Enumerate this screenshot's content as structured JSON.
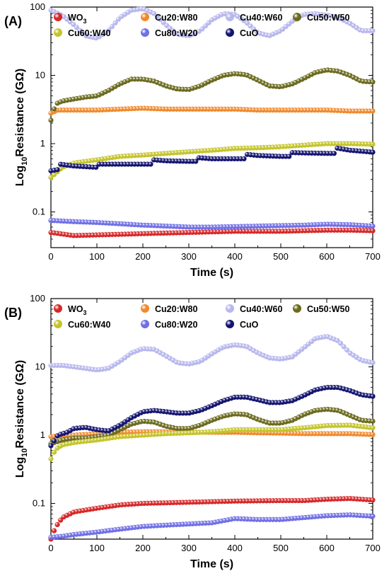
{
  "chart_data": [
    {
      "type": "scatter",
      "panel_label": "(A)",
      "xlabel": "Time (s)",
      "ylabel": "Log10Resistance (GΩ)",
      "ylabel_parts": {
        "pre": "Log",
        "sub": "10",
        "post": "Resistance (GΩ)"
      },
      "xlim": [
        0,
        700
      ],
      "ylim": [
        0.03,
        100
      ],
      "yscale": "log",
      "xticks": [
        0,
        100,
        200,
        300,
        400,
        500,
        600,
        700
      ],
      "yticks": [
        0.1,
        1,
        10,
        100
      ],
      "ytick_labels": [
        "0.1",
        "1",
        "10",
        "100"
      ],
      "legend_position": "top",
      "series": [
        {
          "name": "WO3",
          "name_parts": {
            "main": "WO",
            "sub": "3"
          },
          "color": "#d62728",
          "x": [
            0,
            50,
            100,
            150,
            200,
            250,
            300,
            350,
            400,
            450,
            500,
            550,
            600,
            650,
            700
          ],
          "y": [
            0.05,
            0.045,
            0.046,
            0.047,
            0.048,
            0.049,
            0.05,
            0.051,
            0.052,
            0.052,
            0.052,
            0.053,
            0.054,
            0.054,
            0.053
          ]
        },
        {
          "name": "Cu20:W80",
          "color": "#f0892c",
          "x": [
            0,
            15,
            50,
            100,
            150,
            200,
            250,
            300,
            350,
            400,
            450,
            500,
            550,
            600,
            650,
            700
          ],
          "y": [
            2.8,
            3.1,
            3.1,
            3.1,
            3.2,
            3.3,
            3.2,
            3.2,
            3.2,
            3.2,
            3.1,
            3.1,
            3.1,
            3.1,
            3.0,
            3.0
          ]
        },
        {
          "name": "Cu40:W60",
          "color": "#b8b8ee",
          "x": [
            0,
            25,
            50,
            75,
            100,
            125,
            150,
            175,
            200,
            225,
            250,
            275,
            300,
            325,
            350,
            375,
            400,
            425,
            450,
            475,
            500,
            525,
            550,
            575,
            600,
            625,
            650,
            675,
            700
          ],
          "y": [
            90,
            75,
            55,
            38,
            35,
            45,
            70,
            90,
            95,
            80,
            55,
            40,
            38,
            45,
            65,
            80,
            78,
            60,
            42,
            38,
            45,
            62,
            78,
            80,
            76,
            70,
            58,
            45,
            45
          ]
        },
        {
          "name": "Cu50:W50",
          "color": "#6b6a1e",
          "x": [
            0,
            10,
            25,
            50,
            75,
            100,
            125,
            150,
            175,
            200,
            225,
            250,
            275,
            300,
            325,
            350,
            375,
            400,
            425,
            450,
            475,
            500,
            525,
            550,
            575,
            600,
            625,
            650,
            675,
            700
          ],
          "y": [
            2.2,
            3.8,
            4.2,
            4.5,
            4.8,
            5.0,
            6.0,
            7.5,
            8.8,
            8.8,
            8.2,
            7.0,
            6.3,
            6.2,
            7.0,
            8.5,
            10.0,
            10.6,
            10.2,
            8.5,
            7.0,
            6.8,
            7.5,
            9.0,
            11.0,
            12.0,
            11.5,
            10.0,
            8.2,
            8.0
          ]
        },
        {
          "name": "Cu60:W40",
          "color": "#c4c42a",
          "x": [
            0,
            25,
            50,
            100,
            150,
            200,
            250,
            300,
            350,
            400,
            450,
            500,
            550,
            600,
            650,
            700
          ],
          "y": [
            0.32,
            0.45,
            0.52,
            0.58,
            0.65,
            0.68,
            0.72,
            0.76,
            0.8,
            0.85,
            0.87,
            0.9,
            0.95,
            1.0,
            1.0,
            0.98
          ]
        },
        {
          "name": "Cu80:W20",
          "color": "#6f6fe6",
          "x": [
            0,
            50,
            100,
            150,
            200,
            250,
            300,
            350,
            400,
            450,
            500,
            550,
            600,
            650,
            700
          ],
          "y": [
            0.075,
            0.072,
            0.07,
            0.067,
            0.064,
            0.062,
            0.06,
            0.06,
            0.061,
            0.062,
            0.063,
            0.064,
            0.066,
            0.065,
            0.062
          ]
        },
        {
          "name": "CuO",
          "color": "#141470",
          "x": [
            0,
            18,
            20,
            50,
            100,
            102,
            150,
            200,
            220,
            222,
            250,
            300,
            320,
            322,
            350,
            400,
            420,
            422,
            450,
            500,
            520,
            522,
            550,
            600,
            620,
            622,
            650,
            700
          ],
          "y": [
            0.4,
            0.42,
            0.5,
            0.47,
            0.45,
            0.5,
            0.5,
            0.5,
            0.5,
            0.58,
            0.56,
            0.55,
            0.55,
            0.62,
            0.6,
            0.6,
            0.6,
            0.7,
            0.67,
            0.65,
            0.65,
            0.74,
            0.73,
            0.72,
            0.72,
            0.86,
            0.8,
            0.75
          ]
        }
      ]
    },
    {
      "type": "scatter",
      "panel_label": "(B)",
      "xlabel": "Time (s)",
      "ylabel": "Log10Resistance (GΩ)",
      "ylabel_parts": {
        "pre": "Log",
        "sub": "10",
        "post": "Resistance (GΩ)"
      },
      "xlim": [
        0,
        700
      ],
      "ylim": [
        0.03,
        100
      ],
      "yscale": "log",
      "xticks": [
        0,
        100,
        200,
        300,
        400,
        500,
        600,
        700
      ],
      "yticks": [
        0.1,
        1,
        10,
        100
      ],
      "ytick_labels": [
        "0.1",
        "1",
        "10",
        "100"
      ],
      "legend_position": "top",
      "series": [
        {
          "name": "WO3",
          "name_parts": {
            "main": "WO",
            "sub": "3"
          },
          "color": "#d62728",
          "x": [
            0,
            10,
            25,
            50,
            100,
            150,
            200,
            250,
            300,
            350,
            400,
            450,
            500,
            550,
            600,
            650,
            700
          ],
          "y": [
            0.03,
            0.045,
            0.062,
            0.075,
            0.085,
            0.095,
            0.1,
            0.102,
            0.104,
            0.106,
            0.108,
            0.109,
            0.11,
            0.11,
            0.115,
            0.118,
            0.112
          ]
        },
        {
          "name": "Cu20:W80",
          "color": "#f0892c",
          "x": [
            0,
            25,
            50,
            100,
            150,
            200,
            250,
            300,
            350,
            400,
            450,
            500,
            550,
            600,
            650,
            700
          ],
          "y": [
            0.95,
            0.98,
            1.0,
            1.05,
            1.1,
            1.12,
            1.12,
            1.1,
            1.1,
            1.1,
            1.08,
            1.07,
            1.05,
            1.05,
            1.05,
            1.02
          ]
        },
        {
          "name": "Cu40:W60",
          "color": "#b8b8ee",
          "x": [
            0,
            25,
            50,
            75,
            100,
            125,
            150,
            175,
            200,
            225,
            250,
            275,
            300,
            325,
            350,
            375,
            400,
            425,
            450,
            475,
            500,
            525,
            550,
            575,
            600,
            625,
            650,
            675,
            700
          ],
          "y": [
            10.5,
            10.5,
            10.0,
            9.5,
            9.0,
            9.5,
            12,
            16,
            18.5,
            18,
            14.5,
            11.5,
            11,
            12,
            15.5,
            19.5,
            21,
            20,
            16,
            13.5,
            13,
            14,
            19,
            26,
            28,
            24,
            16,
            12.5,
            11.5
          ]
        },
        {
          "name": "Cu50:W50",
          "color": "#6b6a1e",
          "x": [
            0,
            25,
            50,
            75,
            100,
            125,
            150,
            175,
            200,
            225,
            250,
            275,
            300,
            325,
            350,
            375,
            400,
            425,
            450,
            475,
            500,
            525,
            550,
            575,
            600,
            625,
            650,
            675,
            700
          ],
          "y": [
            0.75,
            0.85,
            0.9,
            0.9,
            0.95,
            1.0,
            1.2,
            1.45,
            1.6,
            1.55,
            1.35,
            1.25,
            1.25,
            1.4,
            1.65,
            1.9,
            2.05,
            2.0,
            1.7,
            1.5,
            1.5,
            1.65,
            2.0,
            2.3,
            2.4,
            2.3,
            1.95,
            1.65,
            1.6
          ]
        },
        {
          "name": "Cu60:W40",
          "color": "#c4c42a",
          "x": [
            0,
            10,
            25,
            50,
            100,
            150,
            200,
            250,
            300,
            350,
            400,
            450,
            500,
            550,
            600,
            650,
            700
          ],
          "y": [
            0.45,
            0.62,
            0.72,
            0.78,
            0.85,
            0.95,
            1.0,
            1.05,
            1.08,
            1.12,
            1.2,
            1.2,
            1.2,
            1.28,
            1.38,
            1.4,
            1.28
          ]
        },
        {
          "name": "Cu80:W20",
          "color": "#6f6fe6",
          "x": [
            0,
            25,
            50,
            100,
            150,
            200,
            250,
            300,
            350,
            400,
            450,
            500,
            550,
            600,
            650,
            700
          ],
          "y": [
            0.032,
            0.033,
            0.035,
            0.038,
            0.042,
            0.046,
            0.048,
            0.05,
            0.052,
            0.06,
            0.058,
            0.058,
            0.062,
            0.066,
            0.068,
            0.065
          ]
        },
        {
          "name": "CuO",
          "color": "#141470",
          "x": [
            0,
            15,
            35,
            50,
            75,
            100,
            125,
            150,
            175,
            200,
            225,
            250,
            275,
            300,
            325,
            350,
            375,
            400,
            425,
            450,
            475,
            500,
            525,
            550,
            575,
            600,
            625,
            650,
            675,
            700
          ],
          "y": [
            0.7,
            1.0,
            1.1,
            1.25,
            1.3,
            1.2,
            1.15,
            1.4,
            1.8,
            2.2,
            2.3,
            2.2,
            2.1,
            2.1,
            2.3,
            2.7,
            3.2,
            3.6,
            3.6,
            3.3,
            3.0,
            3.0,
            3.2,
            3.8,
            4.6,
            5.0,
            5.0,
            4.5,
            3.9,
            3.7
          ]
        }
      ]
    }
  ]
}
